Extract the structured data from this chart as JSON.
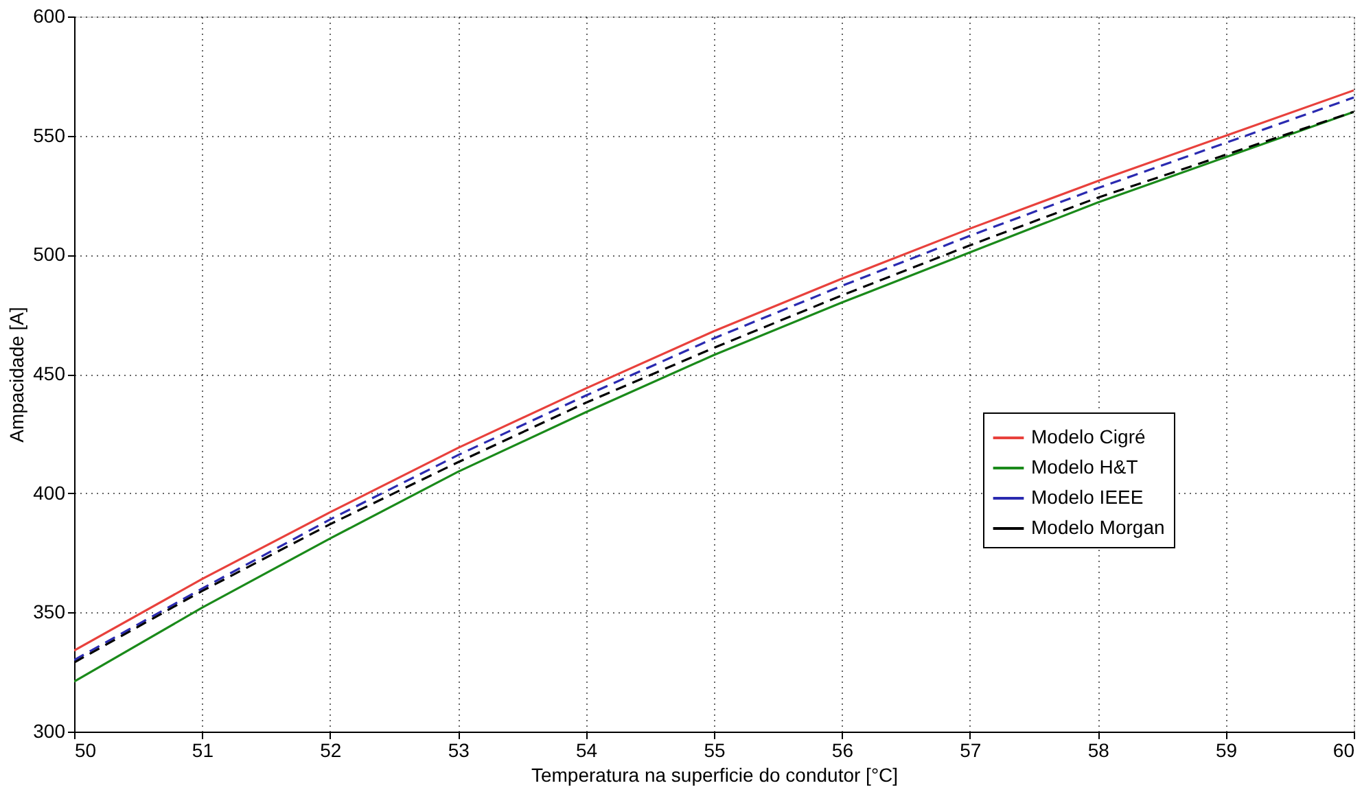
{
  "chart_data": {
    "type": "line",
    "xlabel": "Temperatura na superficie do condutor [°C]",
    "ylabel": "Ampacidade [A]",
    "x": [
      50,
      51,
      52,
      53,
      54,
      55,
      56,
      57,
      58,
      59,
      60
    ],
    "series": [
      {
        "name": "Modelo Cigré",
        "color": "#e8413c",
        "line_style": "solid",
        "values": [
          334,
          364,
          392,
          419,
          444,
          468,
          490,
          511,
          531,
          550,
          569
        ]
      },
      {
        "name": "Modelo H&T",
        "color": "#1a8a1a",
        "line_style": "solid",
        "values": [
          321,
          352,
          381,
          409,
          434,
          458,
          480,
          501,
          522,
          541,
          560
        ]
      },
      {
        "name": "Modelo IEEE",
        "color": "#2a2ab0",
        "line_style": "dashed",
        "values": [
          330,
          360,
          389,
          416,
          441,
          465,
          487,
          508,
          528,
          547,
          566
        ]
      },
      {
        "name": "Modelo Morgan",
        "color": "#000000",
        "line_style": "dashed",
        "values": [
          329,
          359,
          387,
          413,
          438,
          461,
          483,
          504,
          524,
          542,
          560
        ]
      }
    ],
    "xlim": [
      50,
      60
    ],
    "xticks": [
      50,
      51,
      52,
      53,
      54,
      55,
      56,
      57,
      58,
      59,
      60
    ],
    "ylim": [
      300,
      600
    ],
    "yticks": [
      300,
      350,
      400,
      450,
      500,
      550,
      600
    ],
    "grid": true,
    "legend": "right",
    "marker": "none"
  }
}
